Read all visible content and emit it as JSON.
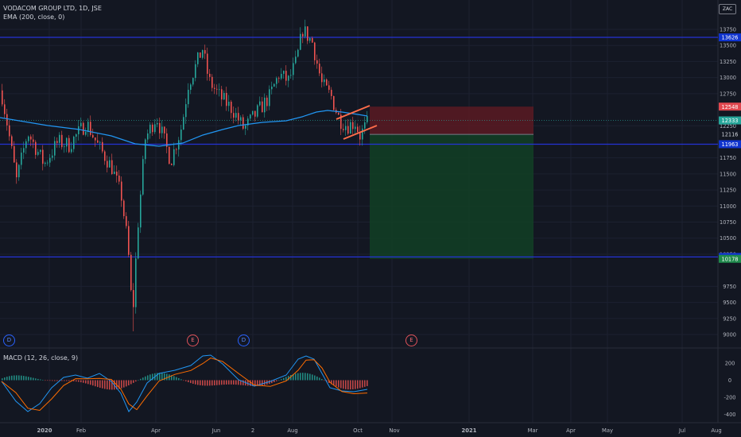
{
  "header": {
    "title": "VODACOM GROUP LTD, 1D, JSE",
    "indicator": "EMA (200, close, 0)",
    "currency": "ZAC"
  },
  "macd_panel": {
    "label": "MACD (12, 26, close, 9)"
  },
  "price_axis": {
    "ticks": [
      "13750",
      "13500",
      "13250",
      "13000",
      "12750",
      "12250",
      "11750",
      "11500",
      "11250",
      "11000",
      "10750",
      "10500",
      "10250",
      "9750",
      "9500",
      "9250",
      "9000"
    ],
    "tick_values": [
      13750,
      13500,
      13250,
      13000,
      12750,
      12250,
      11750,
      11500,
      11250,
      11000,
      10750,
      10500,
      10250,
      9750,
      9500,
      9250,
      9000
    ]
  },
  "price_labels": {
    "resistance": "13626",
    "stop": "12548",
    "current": "12333",
    "entry": "12116",
    "support": "11963",
    "target": "10208",
    "low_target": "10178"
  },
  "macd_axis": {
    "ticks": [
      "200",
      "0",
      "-200",
      "-400"
    ],
    "tick_values": [
      200,
      0,
      -200,
      -400
    ]
  },
  "time_axis": {
    "ticks": [
      "2020",
      "Feb",
      "Apr",
      "Jun",
      "2",
      "Aug",
      "Oct",
      "Nov",
      "2021",
      "Mar",
      "Apr",
      "May",
      "Jul",
      "Aug"
    ],
    "bold": [
      true,
      false,
      false,
      false,
      false,
      false,
      false,
      false,
      true,
      false,
      false,
      false,
      false,
      false
    ]
  },
  "events": [
    "D",
    "E",
    "D",
    "E"
  ],
  "colors": {
    "background": "#131722",
    "up": "#26a69a",
    "down": "#ef5350",
    "ema": "#2196f3",
    "hline": "#2433d6",
    "stop_zone": "#5a1a22",
    "target_zone": "#123f24",
    "channel": "#ff6d4a",
    "macd": "#2196f3",
    "signal": "#ff6d00"
  }
}
